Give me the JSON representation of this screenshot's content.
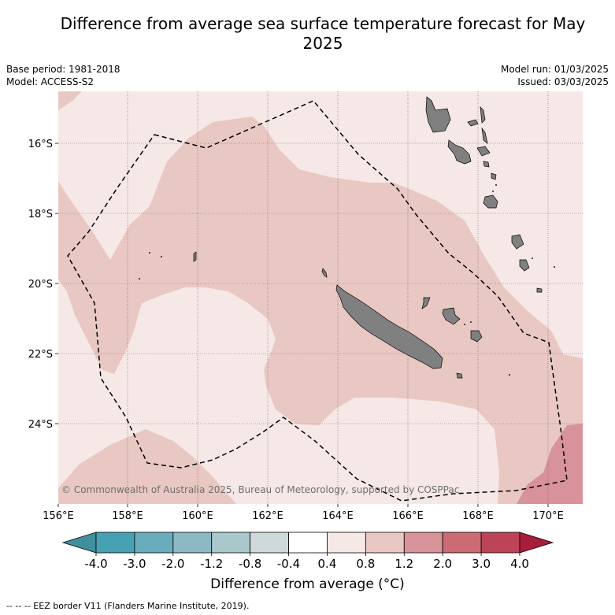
{
  "title": "Difference from average sea surface temperature forecast for May 2025",
  "meta_left": [
    "Base period: 1981-2018",
    "Model: ACCESS-S2"
  ],
  "meta_right": [
    "Model run: 01/03/2025",
    "Issued: 03/03/2025"
  ],
  "copyright": "© Commonwealth of Australia 2025, Bureau of Meteorology, supported by COSPPac",
  "lon_ticks": [
    "156°E",
    "158°E",
    "160°E",
    "162°E",
    "164°E",
    "166°E",
    "168°E",
    "170°E"
  ],
  "lat_ticks": [
    "16°S",
    "18°S",
    "20°S",
    "22°S",
    "24°S"
  ],
  "colorbar": {
    "label": "Difference from average (°C)",
    "ticks": [
      "-4.0",
      "-3.0",
      "-2.0",
      "-1.2",
      "-0.8",
      "-0.4",
      "0.4",
      "0.8",
      "1.2",
      "2.0",
      "3.0",
      "4.0"
    ],
    "colors": [
      "#3f8f9c",
      "#46a2b3",
      "#69acbc",
      "#8cb9c4",
      "#a9c8cc",
      "#cfd9da",
      "#ffffff",
      "#f5e8e6",
      "#e9c8c3",
      "#d8929a",
      "#cd6b75",
      "#bd4458",
      "#a91d3c"
    ]
  },
  "legend_note": "--  --  -- EEZ border V11 (Flanders Marine Institute, 2019).",
  "colors": {
    "land": "#808080",
    "light_anomaly": "#f5e8e6",
    "mid_anomaly": "#e9c8c3",
    "high_anomaly": "#d8929a"
  }
}
